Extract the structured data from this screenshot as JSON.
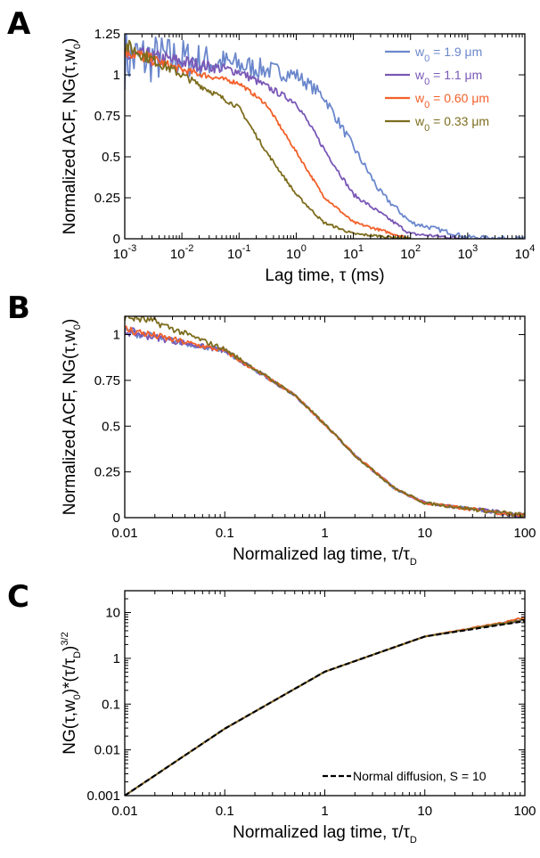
{
  "figure": {
    "panels": [
      {
        "letter": "A",
        "ylabel_text": "Normalized ACF, NG(τ,w",
        "ylabel_sub": "0",
        "ylabel_end": ")",
        "xlabel_text": "Lag time, τ (ms)",
        "xlabel_sub": ""
      },
      {
        "letter": "B",
        "ylabel_text": "Normalized ACF, NG(τ,w",
        "ylabel_sub": "0",
        "ylabel_end": ")",
        "xlabel_text": "Normalized lag time, τ/τ",
        "xlabel_sub": "D"
      },
      {
        "letter": "C",
        "ylabel_text": "NG(τ,w",
        "ylabel_sub": "0",
        "ylabel_mid": ")*(τ/τ",
        "ylabel_sub2": "D",
        "ylabel_end": ")",
        "ylabel_sup": "3/2",
        "xlabel_text": "Normalized lag time, τ/τ",
        "xlabel_sub": "D"
      }
    ]
  },
  "chart_data": [
    {
      "type": "line",
      "panel": "A",
      "xscale": "log",
      "xlim": [
        0.001,
        10000
      ],
      "ylim": [
        0,
        1.25
      ],
      "x_ticks": [
        {
          "value": 0.001,
          "base": "10",
          "exp": "-3"
        },
        {
          "value": 0.01,
          "base": "10",
          "exp": "-2"
        },
        {
          "value": 0.1,
          "base": "10",
          "exp": "-1"
        },
        {
          "value": 1,
          "base": "10",
          "exp": "0"
        },
        {
          "value": 10,
          "base": "10",
          "exp": "1"
        },
        {
          "value": 100,
          "base": "10",
          "exp": "2"
        },
        {
          "value": 1000,
          "base": "10",
          "exp": "3"
        },
        {
          "value": 10000,
          "base": "10",
          "exp": "4"
        }
      ],
      "y_ticks": [
        {
          "value": 0,
          "label": "0"
        },
        {
          "value": 0.25,
          "label": "0.25"
        },
        {
          "value": 0.5,
          "label": "0.5"
        },
        {
          "value": 0.75,
          "label": "0.75"
        },
        {
          "value": 1,
          "label": "1"
        },
        {
          "value": 1.25,
          "label": "1.25"
        }
      ],
      "legend_position": "top-right",
      "series": [
        {
          "name_prefix": "w",
          "name_sub": "0",
          "name_suffix": " = 1.9 μm",
          "color": "#6b87cc",
          "tau_d": 10.0,
          "noise": "high",
          "points": [
            [
              0.001,
              1.1
            ],
            [
              0.01,
              1.1
            ],
            [
              0.1,
              1.06
            ],
            [
              1,
              1.0
            ],
            [
              3,
              0.87
            ],
            [
              10,
              0.56
            ],
            [
              30,
              0.28
            ],
            [
              100,
              0.1
            ],
            [
              1000,
              0.01
            ],
            [
              10000,
              0.0
            ]
          ]
        },
        {
          "name_prefix": "w",
          "name_sub": "0",
          "name_suffix": " = 1.1 μm",
          "color": "#7a58b6",
          "tau_d": 3.3,
          "noise": "medium",
          "points": [
            [
              0.001,
              1.12
            ],
            [
              0.01,
              1.08
            ],
            [
              0.1,
              1.02
            ],
            [
              1,
              0.83
            ],
            [
              3.3,
              0.53
            ],
            [
              10,
              0.27
            ],
            [
              100,
              0.03
            ],
            [
              1000,
              0.0
            ]
          ]
        },
        {
          "name_prefix": "w",
          "name_sub": "0",
          "name_suffix": " = 0.60 μm",
          "color": "#f2602a",
          "tau_d": 1.0,
          "noise": "low",
          "points": [
            [
              0.001,
              1.15
            ],
            [
              0.01,
              1.03
            ],
            [
              0.1,
              0.95
            ],
            [
              0.3,
              0.82
            ],
            [
              1,
              0.53
            ],
            [
              3,
              0.26
            ],
            [
              10,
              0.1
            ],
            [
              100,
              0.0
            ]
          ]
        },
        {
          "name_prefix": "w",
          "name_sub": "0",
          "name_suffix": " = 0.33 μm",
          "color": "#7d6d1e",
          "tau_d": 0.3,
          "noise": "low",
          "points": [
            [
              0.001,
              1.18
            ],
            [
              0.01,
              1.0
            ],
            [
              0.1,
              0.8
            ],
            [
              0.3,
              0.53
            ],
            [
              1,
              0.27
            ],
            [
              3,
              0.1
            ],
            [
              10,
              0.03
            ],
            [
              100,
              0.0
            ]
          ]
        }
      ]
    },
    {
      "type": "line",
      "panel": "B",
      "xscale": "log",
      "xlim": [
        0.01,
        100
      ],
      "ylim": [
        0,
        1.1
      ],
      "x_ticks": [
        {
          "value": 0.01,
          "label": "0.01"
        },
        {
          "value": 0.1,
          "label": "0.1"
        },
        {
          "value": 1,
          "label": "1"
        },
        {
          "value": 10,
          "label": "10"
        },
        {
          "value": 100,
          "label": "100"
        }
      ],
      "y_ticks": [
        {
          "value": 0,
          "label": "0"
        },
        {
          "value": 0.25,
          "label": "0.25"
        },
        {
          "value": 0.5,
          "label": "0.5"
        },
        {
          "value": 0.75,
          "label": "0.75"
        },
        {
          "value": 1,
          "label": "1"
        }
      ],
      "series": [
        {
          "color": "#6b87cc",
          "points": [
            [
              0.01,
              1.02
            ],
            [
              0.1,
              0.91
            ],
            [
              0.5,
              0.67
            ],
            [
              1,
              0.51
            ],
            [
              2,
              0.34
            ],
            [
              5,
              0.16
            ],
            [
              10,
              0.08
            ],
            [
              100,
              0.01
            ]
          ]
        },
        {
          "color": "#7a58b6",
          "points": [
            [
              0.01,
              1.02
            ],
            [
              0.1,
              0.91
            ],
            [
              0.5,
              0.67
            ],
            [
              1,
              0.51
            ],
            [
              2,
              0.34
            ],
            [
              5,
              0.16
            ],
            [
              10,
              0.08
            ],
            [
              100,
              0.01
            ]
          ]
        },
        {
          "color": "#f2602a",
          "points": [
            [
              0.01,
              1.03
            ],
            [
              0.1,
              0.91
            ],
            [
              0.5,
              0.67
            ],
            [
              1,
              0.51
            ],
            [
              2,
              0.34
            ],
            [
              5,
              0.16
            ],
            [
              10,
              0.08
            ],
            [
              100,
              0.01
            ]
          ]
        },
        {
          "color": "#7d6d1e",
          "points": [
            [
              0.01,
              1.1
            ],
            [
              0.02,
              1.07
            ],
            [
              0.1,
              0.92
            ],
            [
              0.5,
              0.67
            ],
            [
              1,
              0.51
            ],
            [
              2,
              0.34
            ],
            [
              5,
              0.16
            ],
            [
              10,
              0.08
            ],
            [
              100,
              0.01
            ]
          ]
        }
      ]
    },
    {
      "type": "line",
      "panel": "C",
      "xscale": "log",
      "yscale": "log",
      "xlim": [
        0.01,
        100
      ],
      "ylim": [
        0.001,
        30
      ],
      "x_ticks": [
        {
          "value": 0.01,
          "label": "0.01"
        },
        {
          "value": 0.1,
          "label": "0.1"
        },
        {
          "value": 1,
          "label": "1"
        },
        {
          "value": 10,
          "label": "10"
        },
        {
          "value": 100,
          "label": "100"
        }
      ],
      "y_ticks": [
        {
          "value": 0.001,
          "label": "0.001"
        },
        {
          "value": 0.01,
          "label": "0.01"
        },
        {
          "value": 0.1,
          "label": "0.1"
        },
        {
          "value": 1,
          "label": "1"
        },
        {
          "value": 10,
          "label": "10"
        }
      ],
      "legend_position": "bottom-right",
      "series": [
        {
          "color": "#6b87cc",
          "points": [
            [
              0.01,
              0.001
            ],
            [
              0.1,
              0.029
            ],
            [
              1,
              0.51
            ],
            [
              10,
              3.0
            ],
            [
              100,
              7.0
            ]
          ]
        },
        {
          "color": "#7a58b6",
          "points": [
            [
              0.01,
              0.001
            ],
            [
              0.1,
              0.029
            ],
            [
              1,
              0.51
            ],
            [
              10,
              3.0
            ],
            [
              100,
              7.0
            ]
          ]
        },
        {
          "color": "#f2602a",
          "points": [
            [
              0.01,
              0.001
            ],
            [
              0.1,
              0.029
            ],
            [
              1,
              0.51
            ],
            [
              10,
              3.0
            ],
            [
              100,
              7.5
            ]
          ]
        },
        {
          "color": "#7d6d1e",
          "points": [
            [
              0.01,
              0.001
            ],
            [
              0.1,
              0.029
            ],
            [
              1,
              0.51
            ],
            [
              10,
              3.0
            ],
            [
              100,
              7.0
            ]
          ]
        },
        {
          "name": "Normal diffusion, S = 10",
          "color": "#000000",
          "dashed": true,
          "points": [
            [
              0.01,
              0.001
            ],
            [
              0.1,
              0.029
            ],
            [
              1,
              0.51
            ],
            [
              10,
              3.0
            ],
            [
              100,
              6.5
            ]
          ]
        }
      ]
    }
  ]
}
